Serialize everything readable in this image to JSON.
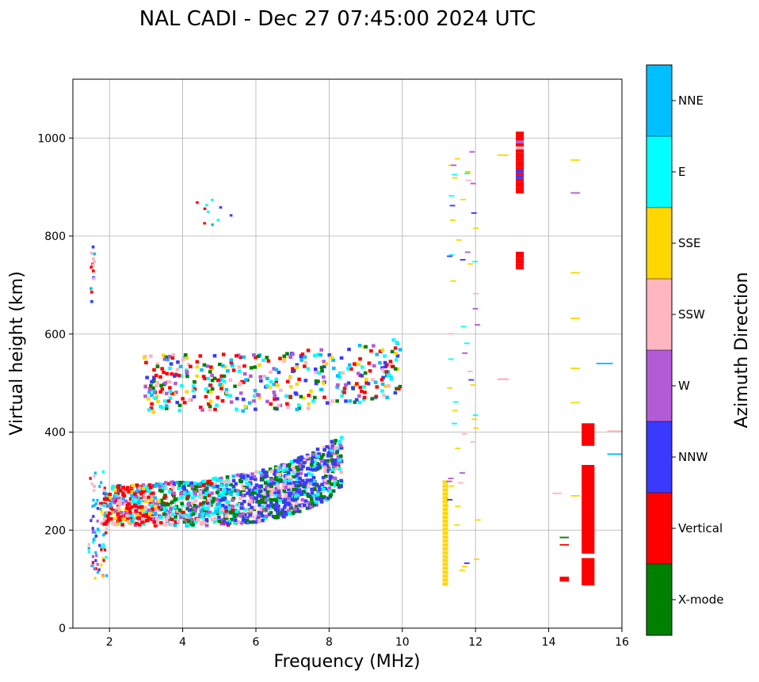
{
  "chart_data": {
    "type": "scatter",
    "title": "NAL CADI - Dec 27 07:45:00 2024 UTC",
    "xlabel": "Frequency (MHz)",
    "ylabel": "Virtual height (km)",
    "xlim": [
      1,
      16
    ],
    "ylim": [
      0,
      1120
    ],
    "xticks": [
      2,
      4,
      6,
      8,
      10,
      12,
      14,
      16
    ],
    "yticks": [
      0,
      200,
      400,
      600,
      800,
      1000
    ],
    "grid": true,
    "colorbar": {
      "label": "Azimuth Direction",
      "categories": [
        {
          "name": "X-mode",
          "color": "#008000"
        },
        {
          "name": "Vertical",
          "color": "#ff0000"
        },
        {
          "name": "NNW",
          "color": "#3a3aff"
        },
        {
          "name": "W",
          "color": "#b35bd6"
        },
        {
          "name": "SSW",
          "color": "#ffb6c1"
        },
        {
          "name": "SSE",
          "color": "#ffd700"
        },
        {
          "name": "E",
          "color": "#00ffff"
        },
        {
          "name": "NNE",
          "color": "#00bfff"
        }
      ]
    },
    "notes": "Ionogram echo traces: O/X-mode F-layer trace from ~1.5 MHz at ~200 km rising to ~8.3 MHz at ~400 km; second-hop trace from ~3 to 10 MHz at 480-620 km; vertical spread echoes near 11.2, 13.2 and 15 MHz."
  }
}
